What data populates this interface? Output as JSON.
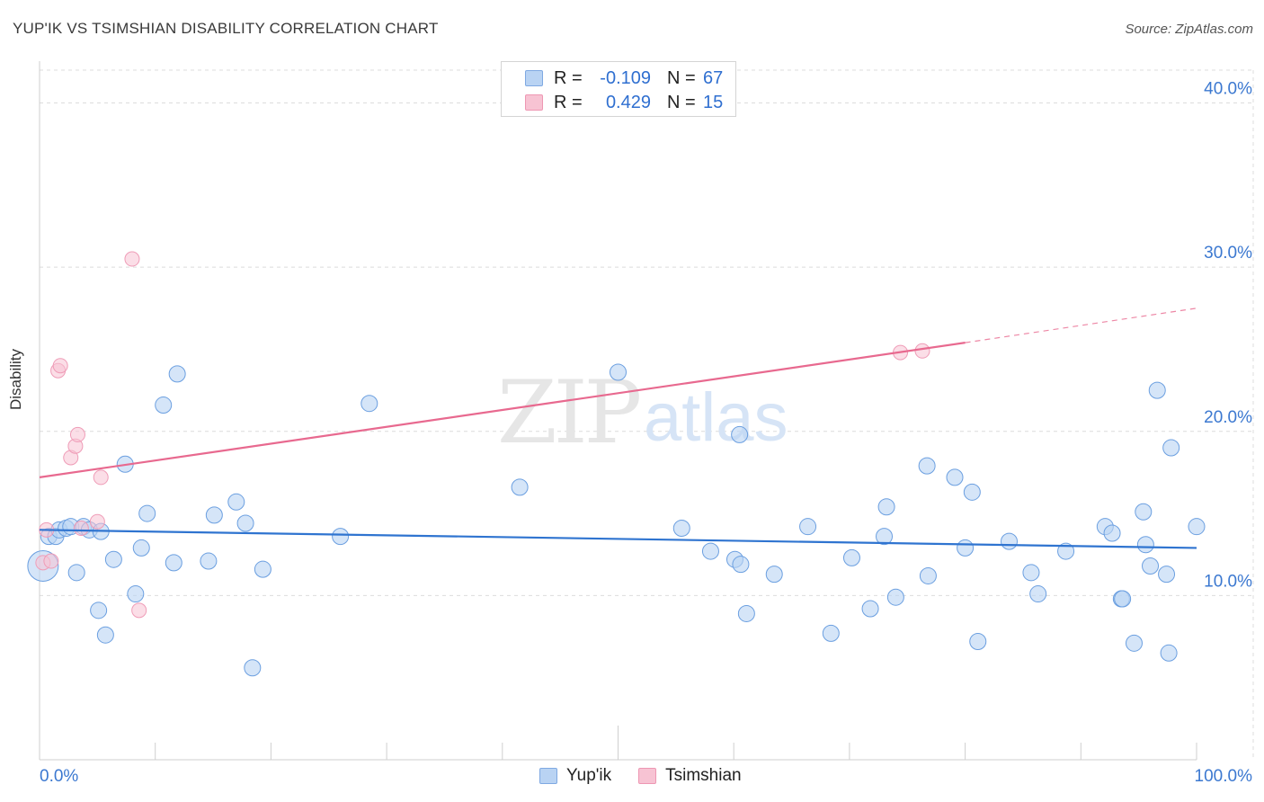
{
  "title": "YUP'IK VS TSIMSHIAN DISABILITY CORRELATION CHART",
  "source": "Source: ZipAtlas.com",
  "colors": {
    "blue": "#2f74d0",
    "blue_fill": "#b9d3f3",
    "pink": "#e8698f",
    "pink_fill": "#f7c3d3",
    "grid": "#dcdcdc",
    "tick_text": "#3b78d0"
  },
  "legend": {
    "rows": [
      {
        "r_label": "R =",
        "r_value": "-0.109",
        "n_label": "N =",
        "n_value": "67"
      },
      {
        "r_label": "R =",
        "r_value": "0.429",
        "n_label": "N =",
        "n_value": "15"
      }
    ]
  },
  "series_names": [
    "Yup'ik",
    "Tsimshian"
  ],
  "chart_data": {
    "type": "scatter",
    "title": "YUP'IK VS TSIMSHIAN DISABILITY CORRELATION CHART",
    "xlabel": "",
    "ylabel": "Disability",
    "xlim": [
      0,
      100
    ],
    "ylim": [
      0,
      42
    ],
    "x_tick_labels": [
      "0.0%",
      "100.0%"
    ],
    "y_ticks": [
      10,
      20,
      30,
      40
    ],
    "y_tick_labels": [
      "10.0%",
      "20.0%",
      "30.0%",
      "40.0%"
    ],
    "watermark": "ZIPatlas",
    "series": [
      {
        "name": "Yup'ik",
        "trend": {
          "x0": 0,
          "y0": 14.0,
          "x1": 100,
          "y1": 12.9
        },
        "points": [
          [
            0.3,
            11.8
          ],
          [
            0.8,
            13.6
          ],
          [
            1.4,
            13.6
          ],
          [
            1.7,
            14.0
          ],
          [
            2.3,
            14.1
          ],
          [
            2.7,
            14.2
          ],
          [
            3.2,
            11.4
          ],
          [
            3.8,
            14.2
          ],
          [
            4.3,
            14.0
          ],
          [
            5.1,
            9.1
          ],
          [
            5.3,
            13.9
          ],
          [
            5.7,
            7.6
          ],
          [
            6.4,
            12.2
          ],
          [
            7.4,
            18.0
          ],
          [
            8.3,
            10.1
          ],
          [
            8.8,
            12.9
          ],
          [
            9.3,
            15.0
          ],
          [
            10.7,
            21.6
          ],
          [
            11.6,
            12.0
          ],
          [
            11.9,
            23.5
          ],
          [
            14.6,
            12.1
          ],
          [
            15.1,
            14.9
          ],
          [
            17.0,
            15.7
          ],
          [
            17.8,
            14.4
          ],
          [
            18.4,
            5.6
          ],
          [
            19.3,
            11.6
          ],
          [
            26.0,
            13.6
          ],
          [
            28.5,
            21.7
          ],
          [
            41.5,
            16.6
          ],
          [
            50.0,
            23.6
          ],
          [
            55.5,
            14.1
          ],
          [
            58.0,
            12.7
          ],
          [
            60.5,
            19.8
          ],
          [
            60.1,
            12.2
          ],
          [
            60.6,
            11.9
          ],
          [
            61.1,
            8.9
          ],
          [
            63.5,
            11.3
          ],
          [
            66.4,
            14.2
          ],
          [
            68.4,
            7.7
          ],
          [
            70.2,
            12.3
          ],
          [
            71.8,
            9.2
          ],
          [
            73.0,
            13.6
          ],
          [
            73.2,
            15.4
          ],
          [
            74.0,
            9.9
          ],
          [
            76.7,
            17.9
          ],
          [
            76.8,
            11.2
          ],
          [
            79.1,
            17.2
          ],
          [
            80.0,
            12.9
          ],
          [
            80.6,
            16.3
          ],
          [
            81.1,
            7.2
          ],
          [
            83.8,
            13.3
          ],
          [
            85.7,
            11.4
          ],
          [
            86.3,
            10.1
          ],
          [
            88.7,
            12.7
          ],
          [
            92.1,
            14.2
          ],
          [
            92.7,
            13.8
          ],
          [
            93.5,
            9.8
          ],
          [
            93.6,
            9.8
          ],
          [
            94.6,
            7.1
          ],
          [
            95.4,
            15.1
          ],
          [
            95.6,
            13.1
          ],
          [
            96.0,
            11.8
          ],
          [
            96.6,
            22.5
          ],
          [
            97.4,
            11.3
          ],
          [
            97.6,
            6.5
          ],
          [
            97.8,
            19.0
          ],
          [
            100.0,
            14.2
          ]
        ]
      },
      {
        "name": "Tsimshian",
        "trend": {
          "x0": 0,
          "y0": 17.2,
          "x1": 80,
          "y1": 25.4,
          "dash_to_x": 100,
          "dash_to_y": 27.5
        },
        "points": [
          [
            0.3,
            12.0
          ],
          [
            0.6,
            14.0
          ],
          [
            1.0,
            12.1
          ],
          [
            1.6,
            23.7
          ],
          [
            1.8,
            24.0
          ],
          [
            2.7,
            18.4
          ],
          [
            3.1,
            19.1
          ],
          [
            3.3,
            19.8
          ],
          [
            3.6,
            14.1
          ],
          [
            5.0,
            14.5
          ],
          [
            5.3,
            17.2
          ],
          [
            8.0,
            30.5
          ],
          [
            8.6,
            9.1
          ],
          [
            74.4,
            24.8
          ],
          [
            76.3,
            24.9
          ]
        ]
      }
    ]
  }
}
